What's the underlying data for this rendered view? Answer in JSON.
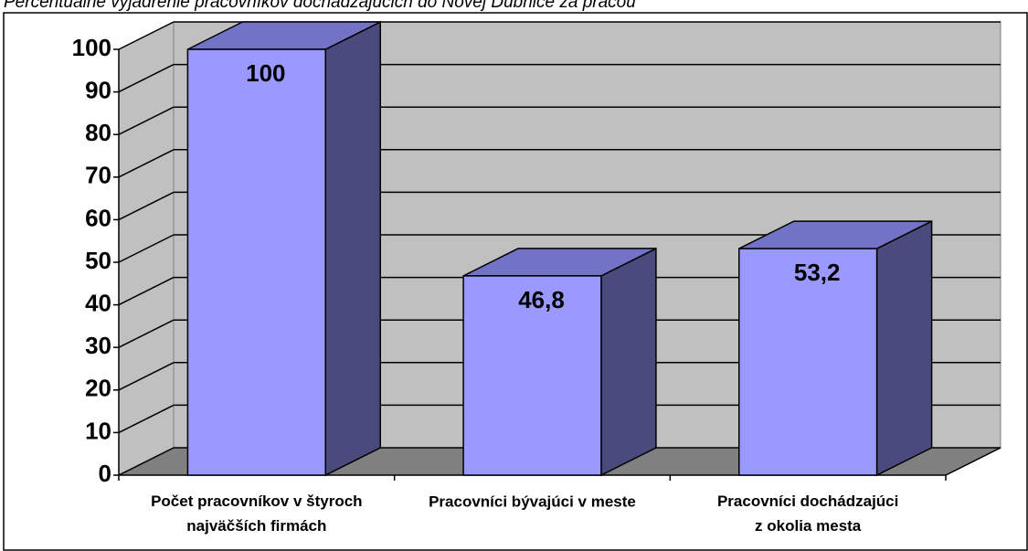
{
  "chart_data": {
    "type": "bar3d",
    "title": "Percentuálne vyjadrenie pracovníkov dochádzajúcich do Novej Dubnice za prácou",
    "categories": [
      "Počet pracovníkov v štyroch\nnajväčších firmách",
      "Pracovníci bývajúci v meste",
      "Pracovníci dochádzajúci\nz okolia mesta"
    ],
    "values": [
      100,
      46.8,
      53.2
    ],
    "value_labels": [
      "100",
      "46,8",
      "53,2"
    ],
    "color": "#9999ff",
    "ylim": [
      0,
      100
    ],
    "yticks": [
      0,
      10,
      20,
      30,
      40,
      50,
      60,
      70,
      80,
      90,
      100
    ],
    "grid": true
  }
}
